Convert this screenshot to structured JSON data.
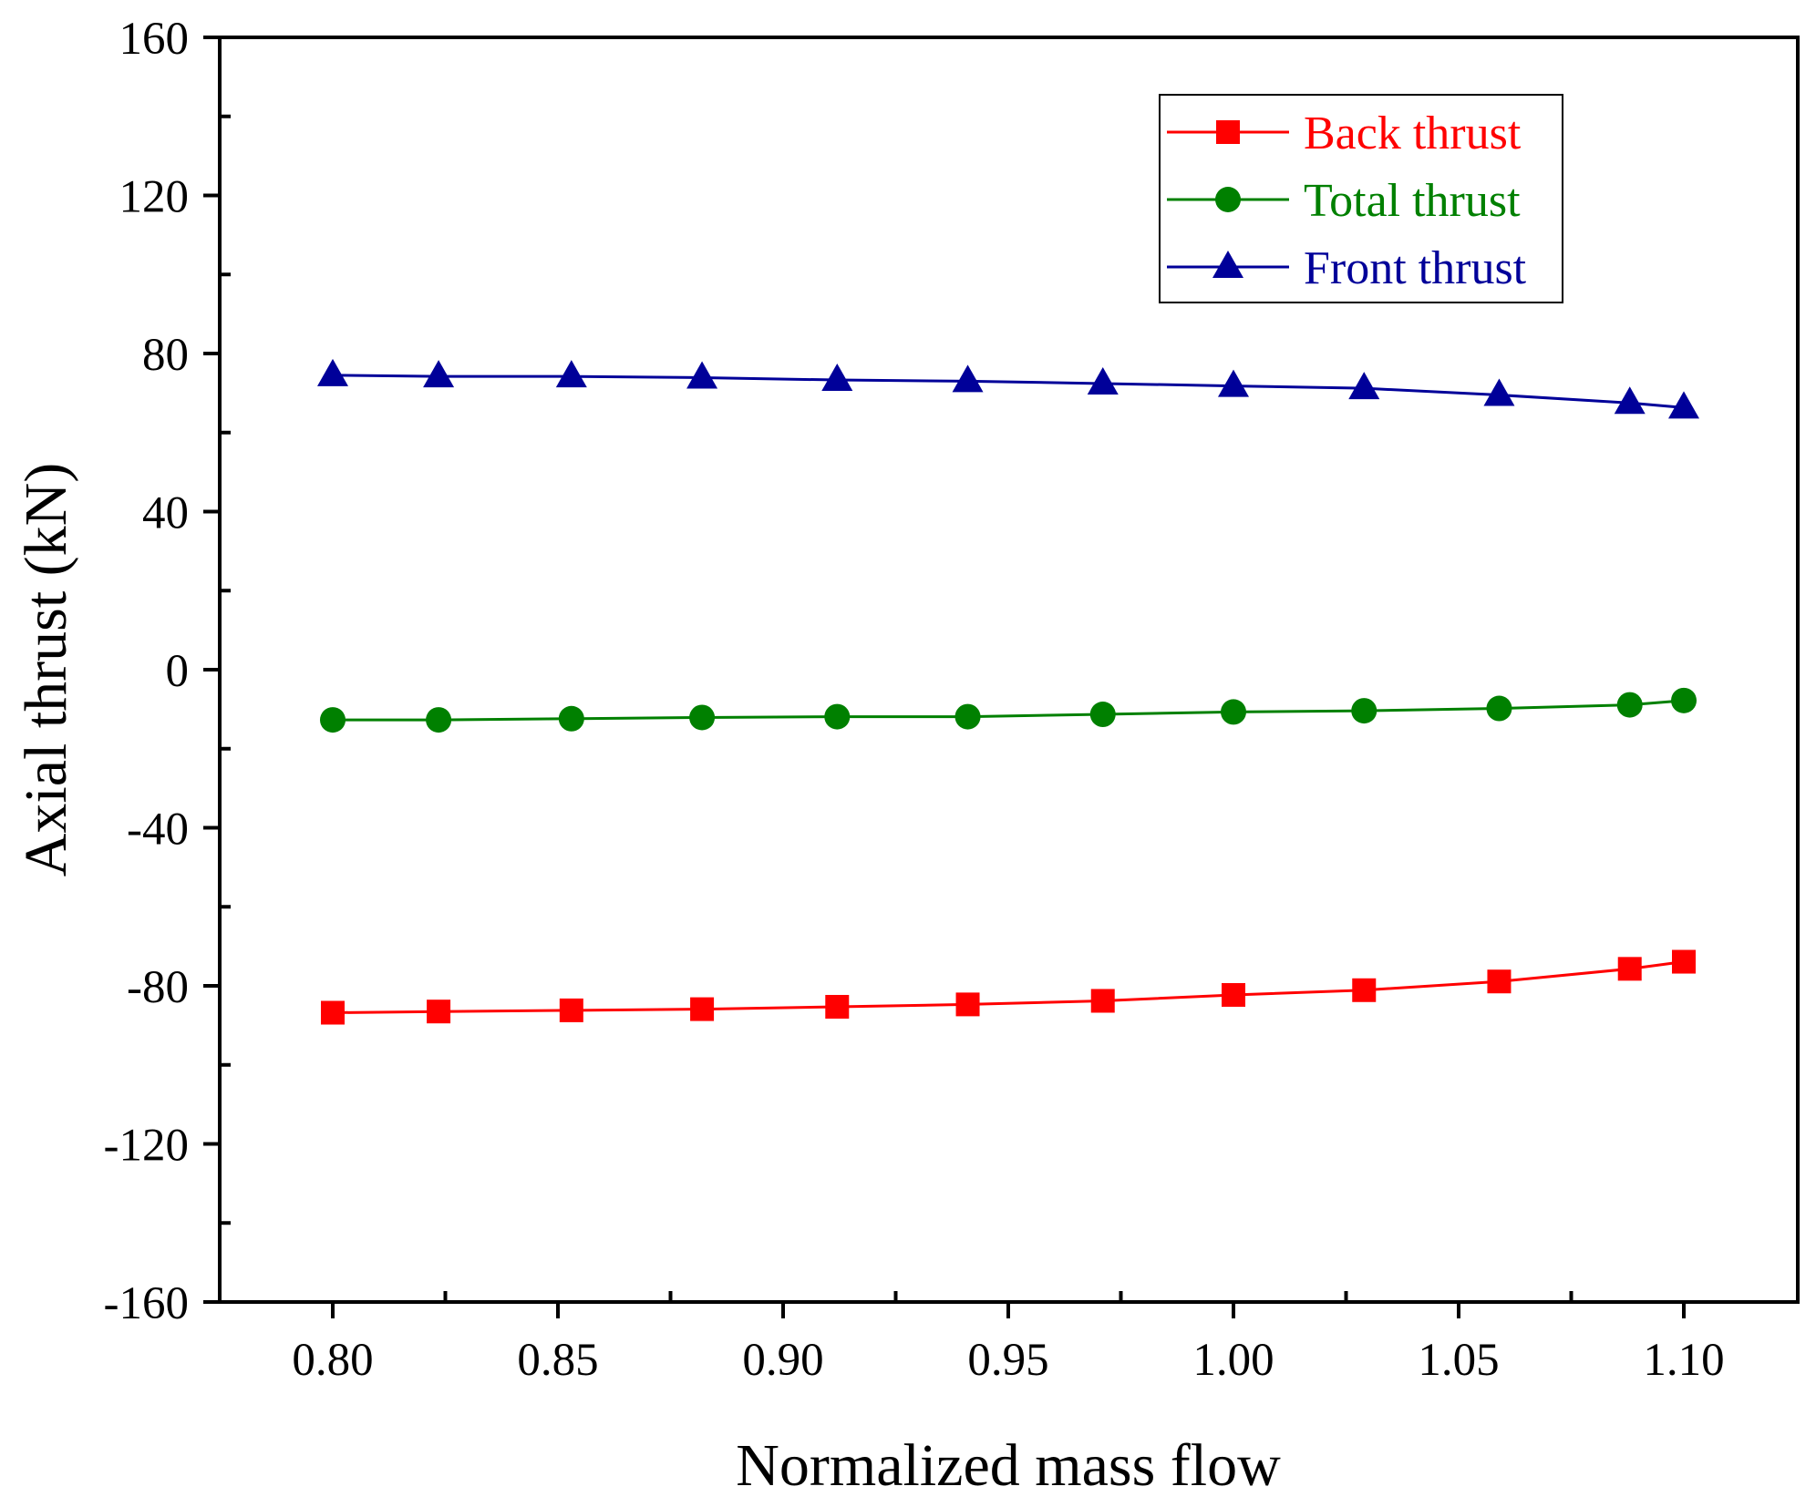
{
  "chart_data": {
    "type": "line",
    "title": "",
    "xlabel": "Normalized mass flow",
    "ylabel": "Axial thrust (kN)",
    "xlim": [
      0.775,
      1.125
    ],
    "ylim": [
      -160,
      160
    ],
    "xticks": [
      0.8,
      0.85,
      0.9,
      0.95,
      1.0,
      1.05,
      1.1
    ],
    "xtick_labels": [
      "0.80",
      "0.85",
      "0.90",
      "0.95",
      "1.00",
      "1.05",
      "1.10"
    ],
    "yticks": [
      -160,
      -120,
      -80,
      -40,
      0,
      40,
      80,
      120,
      160
    ],
    "ytick_labels": [
      "-160",
      "-120",
      "-80",
      "-40",
      "0",
      "40",
      "80",
      "120",
      "160"
    ],
    "grid": false,
    "legend_position": "top-right",
    "x": [
      0.8,
      0.8235,
      0.853,
      0.882,
      0.912,
      0.941,
      0.971,
      1.0,
      1.029,
      1.059,
      1.088,
      1.1
    ],
    "series": [
      {
        "name": "Back thrust",
        "color": "#ff0000",
        "marker": "square",
        "values": [
          -86.8,
          -86.5,
          -86.2,
          -85.9,
          -85.3,
          -84.7,
          -83.8,
          -82.3,
          -81.1,
          -78.9,
          -75.7,
          -73.9
        ]
      },
      {
        "name": "Total thrust",
        "color": "#008000",
        "marker": "circle",
        "values": [
          -12.7,
          -12.7,
          -12.4,
          -12.1,
          -11.9,
          -11.9,
          -11.3,
          -10.7,
          -10.4,
          -9.8,
          -8.9,
          -7.8
        ]
      },
      {
        "name": "Front thrust",
        "color": "#000099",
        "marker": "triangle",
        "values": [
          74.5,
          74.2,
          74.2,
          73.9,
          73.3,
          73.0,
          72.4,
          71.8,
          71.2,
          69.5,
          67.5,
          66.3
        ]
      }
    ]
  }
}
